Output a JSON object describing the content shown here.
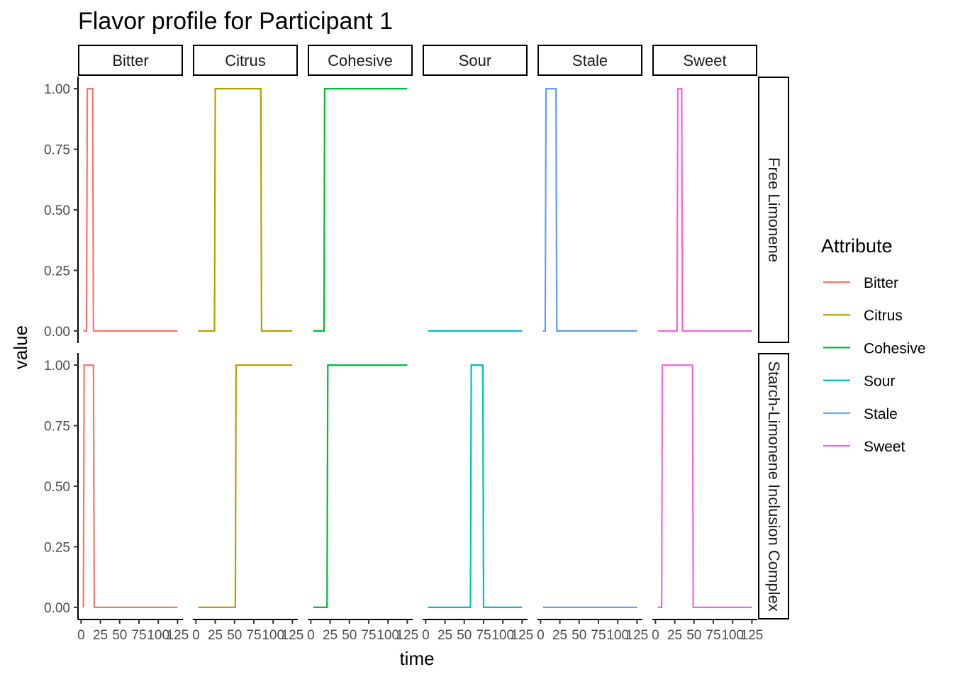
{
  "chart_data": {
    "type": "line",
    "title": "Flavor profile for Participant 1",
    "xlabel": "time",
    "ylabel": "value",
    "xlim": [
      -4,
      132
    ],
    "ylim": [
      -0.05,
      1.05
    ],
    "x_ticks": [
      0,
      25,
      50,
      75,
      100,
      125
    ],
    "y_ticks": [
      0.0,
      0.25,
      0.5,
      0.75,
      1.0
    ],
    "y_tick_labels": [
      "0.00",
      "0.25",
      "0.50",
      "0.75",
      "1.00"
    ],
    "grid": false,
    "legend_position": "right",
    "legend_title": "Attribute",
    "facet_columns": [
      "Bitter",
      "Citrus",
      "Cohesive",
      "Sour",
      "Stale",
      "Sweet"
    ],
    "facet_rows": [
      "Free Limonene",
      "Starch-Limonene Inclusion Complex"
    ],
    "series": [
      {
        "name": "Bitter",
        "color": "#F8766D"
      },
      {
        "name": "Citrus",
        "color": "#B79F00"
      },
      {
        "name": "Cohesive",
        "color": "#00BA38"
      },
      {
        "name": "Sour",
        "color": "#00BFC4"
      },
      {
        "name": "Stale",
        "color": "#619CFF"
      },
      {
        "name": "Sweet",
        "color": "#F564E3"
      }
    ],
    "panels": [
      {
        "row": "Free Limonene",
        "attribute": "Bitter",
        "x": [
          3,
          7,
          8,
          15,
          16,
          125
        ],
        "y": [
          0,
          0,
          1,
          1,
          0,
          0
        ]
      },
      {
        "row": "Free Limonene",
        "attribute": "Citrus",
        "x": [
          3,
          24,
          25,
          84,
          85,
          125
        ],
        "y": [
          0,
          0,
          1,
          1,
          0,
          0
        ]
      },
      {
        "row": "Free Limonene",
        "attribute": "Cohesive",
        "x": [
          3,
          17,
          18,
          125
        ],
        "y": [
          0,
          0,
          1,
          1
        ]
      },
      {
        "row": "Free Limonene",
        "attribute": "Sour",
        "x": [
          3,
          125
        ],
        "y": [
          0,
          0
        ]
      },
      {
        "row": "Free Limonene",
        "attribute": "Stale",
        "x": [
          3,
          6,
          7,
          20,
          21,
          125
        ],
        "y": [
          0,
          0,
          1,
          1,
          0,
          0
        ]
      },
      {
        "row": "Free Limonene",
        "attribute": "Sweet",
        "x": [
          3,
          28,
          29,
          34,
          35,
          125
        ],
        "y": [
          0,
          0,
          1,
          1,
          0,
          0
        ]
      },
      {
        "row": "Starch-Limonene Inclusion Complex",
        "attribute": "Bitter",
        "x": [
          3,
          4,
          16,
          17,
          125
        ],
        "y": [
          0,
          1,
          1,
          0,
          0
        ]
      },
      {
        "row": "Starch-Limonene Inclusion Complex",
        "attribute": "Citrus",
        "x": [
          3,
          51,
          52,
          125
        ],
        "y": [
          0,
          0,
          1,
          1
        ]
      },
      {
        "row": "Starch-Limonene Inclusion Complex",
        "attribute": "Cohesive",
        "x": [
          3,
          21,
          22,
          125
        ],
        "y": [
          0,
          0,
          1,
          1
        ]
      },
      {
        "row": "Starch-Limonene Inclusion Complex",
        "attribute": "Sour",
        "x": [
          3,
          58,
          59,
          74,
          75,
          125
        ],
        "y": [
          0,
          0,
          1,
          1,
          0,
          0
        ]
      },
      {
        "row": "Starch-Limonene Inclusion Complex",
        "attribute": "Stale",
        "x": [
          3,
          125
        ],
        "y": [
          0,
          0
        ]
      },
      {
        "row": "Starch-Limonene Inclusion Complex",
        "attribute": "Sweet",
        "x": [
          3,
          8,
          9,
          48,
          49,
          125
        ],
        "y": [
          0,
          0,
          1,
          1,
          0,
          0
        ]
      }
    ]
  }
}
